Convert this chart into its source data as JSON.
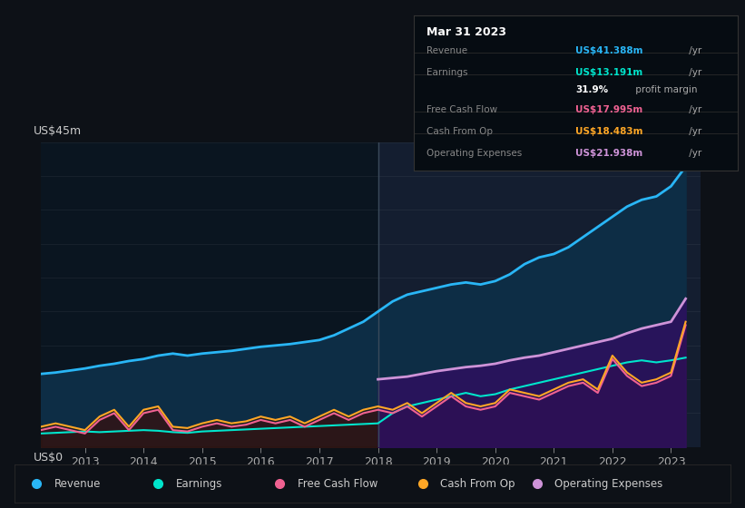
{
  "bg_color": "#0d1117",
  "plot_bg_left": "#0d1a2a",
  "plot_bg_right": "#131c2e",
  "title_label": "US$45m",
  "zero_label": "US$0",
  "ylim": [
    0,
    45
  ],
  "xlim_start": 2012.25,
  "xlim_end": 2023.5,
  "split_x": 2018.0,
  "xticks": [
    2013,
    2014,
    2015,
    2016,
    2017,
    2018,
    2019,
    2020,
    2021,
    2022,
    2023
  ],
  "tooltip_date": "Mar 31 2023",
  "legend_items": [
    {
      "label": "Revenue",
      "color": "#29b6f6"
    },
    {
      "label": "Earnings",
      "color": "#00e5cc"
    },
    {
      "label": "Free Cash Flow",
      "color": "#f06292"
    },
    {
      "label": "Cash From Op",
      "color": "#ffa726"
    },
    {
      "label": "Operating Expenses",
      "color": "#ce93d8"
    }
  ],
  "revenue_x": [
    2012.25,
    2012.5,
    2012.75,
    2013.0,
    2013.25,
    2013.5,
    2013.75,
    2014.0,
    2014.25,
    2014.5,
    2014.75,
    2015.0,
    2015.25,
    2015.5,
    2015.75,
    2016.0,
    2016.25,
    2016.5,
    2016.75,
    2017.0,
    2017.25,
    2017.5,
    2017.75,
    2018.0,
    2018.25,
    2018.5,
    2018.75,
    2019.0,
    2019.25,
    2019.5,
    2019.75,
    2020.0,
    2020.25,
    2020.5,
    2020.75,
    2021.0,
    2021.25,
    2021.5,
    2021.75,
    2022.0,
    2022.25,
    2022.5,
    2022.75,
    2023.0,
    2023.25
  ],
  "revenue": [
    10.8,
    11.0,
    11.3,
    11.6,
    12.0,
    12.3,
    12.7,
    13.0,
    13.5,
    13.8,
    13.5,
    13.8,
    14.0,
    14.2,
    14.5,
    14.8,
    15.0,
    15.2,
    15.5,
    15.8,
    16.5,
    17.5,
    18.5,
    20.0,
    21.5,
    22.5,
    23.0,
    23.5,
    24.0,
    24.3,
    24.0,
    24.5,
    25.5,
    27.0,
    28.0,
    28.5,
    29.5,
    31.0,
    32.5,
    34.0,
    35.5,
    36.5,
    37.0,
    38.5,
    41.4
  ],
  "earnings_x": [
    2012.25,
    2012.5,
    2012.75,
    2013.0,
    2013.25,
    2013.5,
    2013.75,
    2014.0,
    2014.25,
    2014.5,
    2014.75,
    2015.0,
    2015.25,
    2015.5,
    2015.75,
    2016.0,
    2016.25,
    2016.5,
    2016.75,
    2017.0,
    2017.25,
    2017.5,
    2017.75,
    2018.0,
    2018.25,
    2018.5,
    2018.75,
    2019.0,
    2019.25,
    2019.5,
    2019.75,
    2020.0,
    2020.25,
    2020.5,
    2020.75,
    2021.0,
    2021.25,
    2021.5,
    2021.75,
    2022.0,
    2022.25,
    2022.5,
    2022.75,
    2023.0,
    2023.25
  ],
  "earnings": [
    2.0,
    2.1,
    2.2,
    2.3,
    2.2,
    2.3,
    2.4,
    2.5,
    2.4,
    2.2,
    2.1,
    2.3,
    2.4,
    2.5,
    2.6,
    2.7,
    2.8,
    2.9,
    3.0,
    3.1,
    3.2,
    3.3,
    3.4,
    3.5,
    5.0,
    6.0,
    6.5,
    7.0,
    7.5,
    8.0,
    7.5,
    7.8,
    8.5,
    9.0,
    9.5,
    10.0,
    10.5,
    11.0,
    11.5,
    12.0,
    12.5,
    12.8,
    12.5,
    12.8,
    13.2
  ],
  "cfo_x": [
    2012.25,
    2012.5,
    2012.75,
    2013.0,
    2013.25,
    2013.5,
    2013.75,
    2014.0,
    2014.25,
    2014.5,
    2014.75,
    2015.0,
    2015.25,
    2015.5,
    2015.75,
    2016.0,
    2016.25,
    2016.5,
    2016.75,
    2017.0,
    2017.25,
    2017.5,
    2017.75,
    2018.0,
    2018.25,
    2018.5,
    2018.75,
    2019.0,
    2019.25,
    2019.5,
    2019.75,
    2020.0,
    2020.25,
    2020.5,
    2020.75,
    2021.0,
    2021.25,
    2021.5,
    2021.75,
    2022.0,
    2022.25,
    2022.5,
    2022.75,
    2023.0,
    2023.25
  ],
  "cash_from_op": [
    3.0,
    3.5,
    3.0,
    2.5,
    4.5,
    5.5,
    3.0,
    5.5,
    6.0,
    3.0,
    2.8,
    3.5,
    4.0,
    3.5,
    3.8,
    4.5,
    4.0,
    4.5,
    3.5,
    4.5,
    5.5,
    4.5,
    5.5,
    6.0,
    5.5,
    6.5,
    5.0,
    6.5,
    8.0,
    6.5,
    6.0,
    6.5,
    8.5,
    8.0,
    7.5,
    8.5,
    9.5,
    10.0,
    8.5,
    13.5,
    11.0,
    9.5,
    10.0,
    11.0,
    18.5
  ],
  "fcf_x": [
    2012.25,
    2012.5,
    2012.75,
    2013.0,
    2013.25,
    2013.5,
    2013.75,
    2014.0,
    2014.25,
    2014.5,
    2014.75,
    2015.0,
    2015.25,
    2015.5,
    2015.75,
    2016.0,
    2016.25,
    2016.5,
    2016.75,
    2017.0,
    2017.25,
    2017.5,
    2017.75,
    2018.0,
    2018.25,
    2018.5,
    2018.75,
    2019.0,
    2019.25,
    2019.5,
    2019.75,
    2020.0,
    2020.25,
    2020.5,
    2020.75,
    2021.0,
    2021.25,
    2021.5,
    2021.75,
    2022.0,
    2022.25,
    2022.5,
    2022.75,
    2023.0,
    2023.25
  ],
  "free_cash_flow": [
    2.5,
    3.0,
    2.5,
    2.0,
    4.0,
    5.0,
    2.5,
    5.0,
    5.5,
    2.5,
    2.3,
    3.0,
    3.5,
    3.0,
    3.3,
    4.0,
    3.5,
    4.0,
    3.0,
    4.0,
    5.0,
    4.0,
    5.0,
    5.5,
    5.0,
    6.0,
    4.5,
    6.0,
    7.5,
    6.0,
    5.5,
    6.0,
    8.0,
    7.5,
    7.0,
    8.0,
    9.0,
    9.5,
    8.0,
    13.0,
    10.5,
    9.0,
    9.5,
    10.5,
    18.0
  ],
  "ope_x": [
    2018.0,
    2018.25,
    2018.5,
    2018.75,
    2019.0,
    2019.25,
    2019.5,
    2019.75,
    2020.0,
    2020.25,
    2020.5,
    2020.75,
    2021.0,
    2021.25,
    2021.5,
    2021.75,
    2022.0,
    2022.25,
    2022.5,
    2022.75,
    2023.0,
    2023.25
  ],
  "op_expenses": [
    10.0,
    10.2,
    10.4,
    10.8,
    11.2,
    11.5,
    11.8,
    12.0,
    12.3,
    12.8,
    13.2,
    13.5,
    14.0,
    14.5,
    15.0,
    15.5,
    16.0,
    16.8,
    17.5,
    18.0,
    18.5,
    21.9
  ]
}
